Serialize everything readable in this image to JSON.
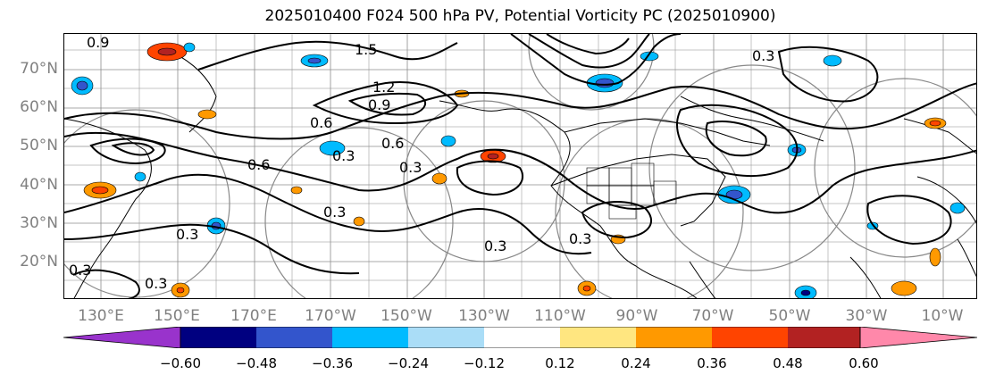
{
  "title": "2025010400 F024 500 hPa PV, Potential Vorticity PC (2025010900)",
  "map": {
    "lat_labels": [
      "70°N",
      "60°N",
      "50°N",
      "40°N",
      "30°N",
      "20°N"
    ],
    "lon_labels": [
      "130°E",
      "150°E",
      "170°E",
      "170°W",
      "150°W",
      "130°W",
      "110°W",
      "90°W",
      "70°W",
      "50°W",
      "30°W",
      "10°W"
    ],
    "contour_labels": [
      "0.9",
      "1.5",
      "1.2",
      "0.9",
      "0.6",
      "0.6",
      "0.6",
      "0.3",
      "0.3",
      "0.3",
      "0.3",
      "0.3",
      "0.3",
      "0.3",
      "0.3",
      "0.3"
    ],
    "lat_range": [
      10,
      80
    ],
    "lon_range": [
      120,
      355
    ]
  },
  "colorbar": {
    "ticks": [
      "−0.60",
      "−0.48",
      "−0.36",
      "−0.24",
      "−0.12",
      "0.12",
      "0.24",
      "0.36",
      "0.48",
      "0.60"
    ],
    "colors": [
      "#9933cc",
      "#000080",
      "#3355cc",
      "#00bbff",
      "#aaddf7",
      "#ffffff",
      "#ffe680",
      "#ff9900",
      "#ff4400",
      "#b22222",
      "#ff88aa"
    ]
  }
}
